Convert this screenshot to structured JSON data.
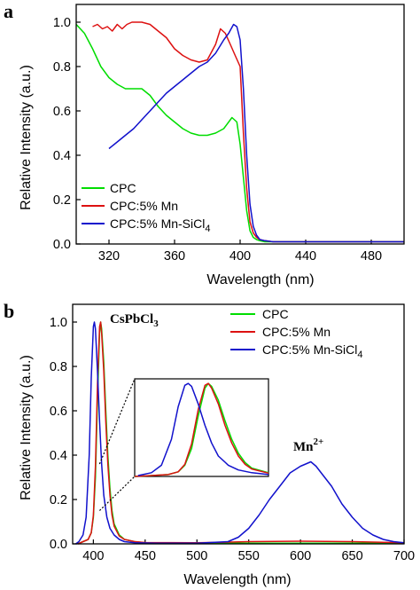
{
  "chart_data": [
    {
      "type": "line",
      "panel_label": "a",
      "xlabel": "Wavelength (nm)",
      "ylabel": "Relative Intensity (a.u.)",
      "xlim": [
        300,
        500
      ],
      "ylim": [
        0,
        1.08
      ],
      "xticks": [
        320,
        360,
        400,
        440,
        480
      ],
      "yticks": [
        0.0,
        0.2,
        0.4,
        0.6,
        0.8,
        1.0
      ],
      "ytick_labels": [
        "0.0",
        "0.2",
        "0.4",
        "0.6",
        "0.8",
        "1.0"
      ],
      "legend_position": "bottom-left",
      "series": [
        {
          "name": "CPC",
          "color": "#00dd00",
          "x": [
            300,
            305,
            310,
            315,
            320,
            325,
            330,
            335,
            340,
            345,
            350,
            355,
            360,
            365,
            370,
            375,
            380,
            385,
            390,
            395,
            398,
            400,
            402,
            404,
            406,
            408,
            410,
            412,
            415,
            420,
            430,
            440,
            460,
            480,
            500
          ],
          "y": [
            0.99,
            0.95,
            0.88,
            0.8,
            0.75,
            0.72,
            0.7,
            0.7,
            0.7,
            0.67,
            0.62,
            0.58,
            0.55,
            0.52,
            0.5,
            0.49,
            0.49,
            0.5,
            0.52,
            0.57,
            0.55,
            0.45,
            0.3,
            0.15,
            0.06,
            0.03,
            0.02,
            0.015,
            0.01,
            0.01,
            0.01,
            0.01,
            0.01,
            0.01,
            0.01
          ]
        },
        {
          "name": "CPC:5% Mn",
          "color": "#dd1111",
          "x": [
            310,
            313,
            316,
            319,
            322,
            325,
            328,
            331,
            334,
            337,
            340,
            345,
            350,
            355,
            360,
            365,
            370,
            375,
            380,
            385,
            388,
            391,
            394,
            397,
            400,
            402,
            404,
            406,
            408,
            410,
            412,
            415,
            420,
            430,
            440,
            460,
            480,
            500
          ],
          "y": [
            0.98,
            0.99,
            0.97,
            0.98,
            0.96,
            0.99,
            0.97,
            0.99,
            1.0,
            1.0,
            1.0,
            0.99,
            0.96,
            0.93,
            0.88,
            0.85,
            0.83,
            0.82,
            0.83,
            0.9,
            0.97,
            0.95,
            0.9,
            0.85,
            0.8,
            0.5,
            0.25,
            0.1,
            0.05,
            0.03,
            0.02,
            0.015,
            0.01,
            0.01,
            0.01,
            0.01,
            0.01,
            0.01
          ]
        },
        {
          "name": "CPC:5% Mn-SiCl4",
          "color": "#1111cc",
          "x": [
            320,
            325,
            330,
            335,
            340,
            345,
            350,
            355,
            360,
            365,
            370,
            375,
            380,
            385,
            390,
            393,
            396,
            398,
            400,
            402,
            404,
            406,
            408,
            410,
            412,
            415,
            420,
            430,
            440,
            460,
            480,
            500
          ],
          "y": [
            0.43,
            0.46,
            0.49,
            0.52,
            0.56,
            0.6,
            0.64,
            0.68,
            0.71,
            0.74,
            0.77,
            0.8,
            0.82,
            0.86,
            0.92,
            0.95,
            0.99,
            0.98,
            0.92,
            0.7,
            0.4,
            0.18,
            0.08,
            0.04,
            0.02,
            0.015,
            0.01,
            0.01,
            0.01,
            0.01,
            0.01,
            0.01
          ]
        }
      ]
    },
    {
      "type": "line",
      "panel_label": "b",
      "xlabel": "Wavelength (nm)",
      "ylabel": "Relative Intensity (a.u.)",
      "xlim": [
        380,
        700
      ],
      "ylim": [
        0,
        1.08
      ],
      "xticks": [
        400,
        450,
        500,
        550,
        600,
        650,
        700
      ],
      "yticks": [
        0.0,
        0.2,
        0.4,
        0.6,
        0.8,
        1.0
      ],
      "ytick_labels": [
        "0.0",
        "0.2",
        "0.4",
        "0.6",
        "0.8",
        "1.0"
      ],
      "legend_position": "top-right",
      "annotations": [
        {
          "text": "CsPbCl",
          "subscript": "3",
          "x": 418,
          "y": 0.98
        },
        {
          "text": "Mn",
          "superscript": "2+",
          "x": 605,
          "y": 0.47
        }
      ],
      "inset": {
        "xlim": [
          385,
          425
        ],
        "ylim": [
          0,
          1.05
        ],
        "zoom_center": [
          406,
          0.2
        ]
      },
      "series": [
        {
          "name": "CPC",
          "color": "#00dd00",
          "x": [
            385,
            390,
            395,
            398,
            400,
            402,
            404,
            406,
            407,
            408,
            410,
            412,
            414,
            416,
            418,
            420,
            425,
            430,
            440,
            450,
            500,
            600,
            700
          ],
          "y": [
            0.0,
            0.01,
            0.02,
            0.05,
            0.12,
            0.3,
            0.65,
            0.95,
            1.0,
            0.97,
            0.82,
            0.6,
            0.4,
            0.25,
            0.15,
            0.09,
            0.04,
            0.02,
            0.01,
            0.005,
            0.003,
            0.003,
            0.003
          ]
        },
        {
          "name": "CPC:5% Mn",
          "color": "#dd1111",
          "x": [
            385,
            390,
            395,
            398,
            400,
            402,
            404,
            406,
            407,
            408,
            410,
            412,
            414,
            416,
            418,
            420,
            425,
            430,
            440,
            450,
            500,
            550,
            600,
            650,
            700
          ],
          "y": [
            0.0,
            0.01,
            0.02,
            0.05,
            0.13,
            0.35,
            0.72,
            0.98,
            1.0,
            0.95,
            0.78,
            0.55,
            0.36,
            0.22,
            0.13,
            0.08,
            0.035,
            0.02,
            0.01,
            0.006,
            0.005,
            0.01,
            0.012,
            0.01,
            0.005
          ]
        },
        {
          "name": "CPC:5% Mn-SiCl4",
          "color": "#1111cc",
          "x": [
            383,
            386,
            390,
            393,
            396,
            398,
            400,
            401,
            402,
            404,
            406,
            408,
            410,
            413,
            416,
            420,
            425,
            430,
            440,
            460,
            500,
            530,
            540,
            550,
            560,
            570,
            580,
            590,
            600,
            605,
            610,
            615,
            620,
            630,
            640,
            650,
            660,
            670,
            680,
            690,
            700
          ],
          "y": [
            0.0,
            0.01,
            0.04,
            0.12,
            0.4,
            0.75,
            0.98,
            1.0,
            0.97,
            0.78,
            0.55,
            0.36,
            0.22,
            0.12,
            0.07,
            0.04,
            0.02,
            0.01,
            0.005,
            0.003,
            0.003,
            0.01,
            0.03,
            0.07,
            0.13,
            0.2,
            0.26,
            0.32,
            0.35,
            0.36,
            0.37,
            0.35,
            0.32,
            0.26,
            0.18,
            0.12,
            0.07,
            0.04,
            0.02,
            0.01,
            0.005
          ]
        }
      ]
    }
  ]
}
